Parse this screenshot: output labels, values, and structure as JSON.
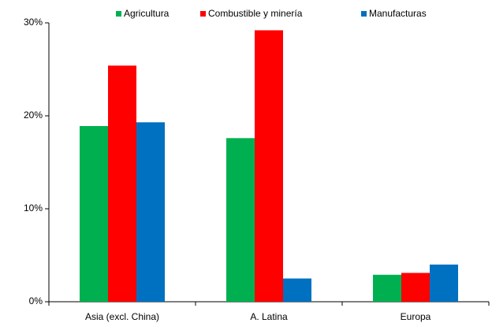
{
  "chart_data": {
    "type": "bar",
    "categories": [
      "Asia (excl. China)",
      "A. Latina",
      "Europa"
    ],
    "series": [
      {
        "name": "Agricultura",
        "color": "#00b050",
        "values": [
          18.9,
          17.6,
          2.9
        ]
      },
      {
        "name": "Combustible y minería",
        "color": "#ff0000",
        "values": [
          25.4,
          29.2,
          3.1
        ]
      },
      {
        "name": "Manufacturas",
        "color": "#0070c0",
        "values": [
          19.3,
          2.5,
          4.0
        ]
      }
    ],
    "ylim": [
      0,
      30
    ],
    "yticks": [
      {
        "value": 0,
        "label": "0%"
      },
      {
        "value": 10,
        "label": "10%"
      },
      {
        "value": 20,
        "label": "20%"
      },
      {
        "value": 30,
        "label": "30%"
      }
    ],
    "grid": false,
    "legend": "top"
  }
}
